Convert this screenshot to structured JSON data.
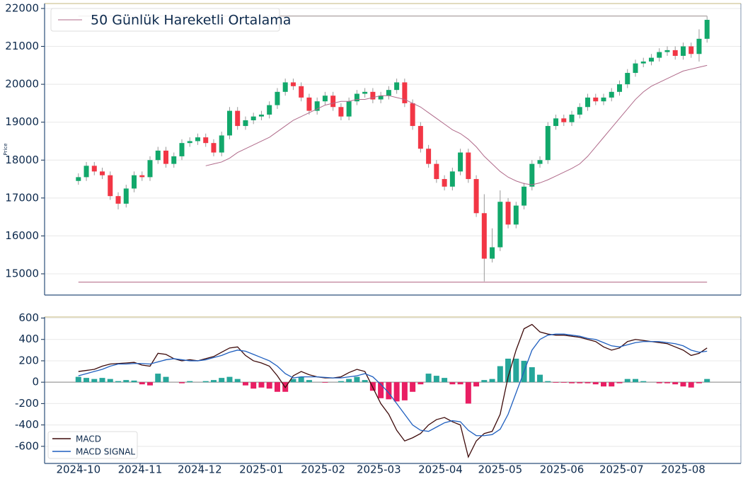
{
  "chart_data": [
    {
      "type": "candlestick",
      "ylabel": "Price",
      "legend": "50 Günlük Hareketli Ortalama",
      "up_color": "#12a86b",
      "down_color": "#f23645",
      "ma_color": "#b06a8a",
      "ylim": [
        14440,
        22130
      ],
      "yticks": [
        15000,
        16000,
        17000,
        18000,
        19000,
        20000,
        21000,
        22000
      ],
      "grid": true,
      "reference_lines": [
        {
          "value": 21800,
          "color": "#b8aeae"
        },
        {
          "value": 14780,
          "color": "#c994a8"
        }
      ],
      "x": [
        "2024-10-01",
        "2024-10-05",
        "2024-10-09",
        "2024-10-13",
        "2024-10-17",
        "2024-10-21",
        "2024-10-25",
        "2024-10-29",
        "2024-11-02",
        "2024-11-06",
        "2024-11-10",
        "2024-11-14",
        "2024-11-18",
        "2024-11-22",
        "2024-11-26",
        "2024-11-30",
        "2024-12-04",
        "2024-12-08",
        "2024-12-12",
        "2024-12-16",
        "2024-12-20",
        "2024-12-24",
        "2024-12-28",
        "2025-01-01",
        "2025-01-05",
        "2025-01-09",
        "2025-01-13",
        "2025-01-17",
        "2025-01-21",
        "2025-01-25",
        "2025-01-29",
        "2025-02-02",
        "2025-02-06",
        "2025-02-10",
        "2025-02-14",
        "2025-02-18",
        "2025-02-22",
        "2025-02-26",
        "2025-03-02",
        "2025-03-06",
        "2025-03-10",
        "2025-03-14",
        "2025-03-18",
        "2025-03-22",
        "2025-03-26",
        "2025-03-30",
        "2025-04-03",
        "2025-04-07",
        "2025-04-11",
        "2025-04-15",
        "2025-04-19",
        "2025-04-23",
        "2025-04-27",
        "2025-05-01",
        "2025-05-05",
        "2025-05-09",
        "2025-05-13",
        "2025-05-17",
        "2025-05-21",
        "2025-05-25",
        "2025-05-29",
        "2025-06-02",
        "2025-06-06",
        "2025-06-10",
        "2025-06-14",
        "2025-06-18",
        "2025-06-22",
        "2025-06-26",
        "2025-06-30",
        "2025-07-04",
        "2025-07-08",
        "2025-07-12",
        "2025-07-16",
        "2025-07-20",
        "2025-07-24",
        "2025-07-28",
        "2025-08-01",
        "2025-08-05",
        "2025-08-09",
        "2025-08-13"
      ],
      "open": [
        17450,
        17550,
        17850,
        17700,
        17600,
        17050,
        16850,
        17250,
        17600,
        17550,
        18000,
        18250,
        17900,
        18100,
        18450,
        18500,
        18600,
        18450,
        18200,
        18650,
        19300,
        18900,
        19050,
        19150,
        19200,
        19450,
        19800,
        20050,
        19950,
        19650,
        19300,
        19550,
        19700,
        19400,
        19150,
        19550,
        19750,
        19800,
        19600,
        19700,
        19850,
        20050,
        19500,
        18900,
        18300,
        17900,
        17500,
        17300,
        17700,
        18200,
        17500,
        16600,
        15400,
        15700,
        16900,
        16300,
        16800,
        17300,
        17900,
        18000,
        18900,
        19100,
        19000,
        19200,
        19400,
        19650,
        19550,
        19650,
        19800,
        20000,
        20300,
        20550,
        20600,
        20700,
        20850,
        20900,
        20750,
        21000,
        20800,
        21200
      ],
      "high": [
        17650,
        17950,
        17950,
        17800,
        17700,
        17150,
        17350,
        17700,
        17700,
        18100,
        18350,
        18350,
        18200,
        18550,
        18600,
        18700,
        18700,
        18550,
        18750,
        19400,
        19400,
        19150,
        19250,
        19300,
        19550,
        19900,
        20150,
        20150,
        20050,
        19750,
        19650,
        19800,
        19800,
        19500,
        19650,
        19850,
        19900,
        19900,
        19800,
        19950,
        20150,
        20150,
        19600,
        19000,
        18400,
        18000,
        17600,
        17800,
        18300,
        18300,
        17600,
        17100,
        16200,
        17200,
        17000,
        16900,
        17400,
        18000,
        18100,
        19000,
        19200,
        19200,
        19300,
        19500,
        19750,
        19750,
        19750,
        19900,
        20100,
        20400,
        20650,
        20700,
        20800,
        20950,
        21000,
        21000,
        21100,
        21100,
        21450,
        21800
      ],
      "low": [
        17350,
        17450,
        17600,
        17500,
        16950,
        16700,
        16750,
        17150,
        17450,
        17450,
        17900,
        17800,
        17800,
        18000,
        18350,
        18400,
        18350,
        18100,
        18100,
        18550,
        18800,
        18800,
        18950,
        19050,
        19100,
        19350,
        19700,
        19850,
        19550,
        19200,
        19200,
        19450,
        19300,
        19050,
        19050,
        19450,
        19650,
        19500,
        19500,
        19600,
        19750,
        19400,
        18800,
        18200,
        17800,
        17400,
        17200,
        17200,
        17600,
        17400,
        16500,
        14800,
        15300,
        15600,
        16200,
        16200,
        16700,
        17200,
        17800,
        17900,
        18800,
        18900,
        18900,
        19100,
        19300,
        19450,
        19450,
        19550,
        19700,
        19900,
        20200,
        20450,
        20500,
        20600,
        20750,
        20650,
        20650,
        20700,
        20600,
        21100
      ],
      "close": [
        17550,
        17850,
        17700,
        17600,
        17050,
        16850,
        17250,
        17600,
        17550,
        18000,
        18250,
        17900,
        18100,
        18450,
        18500,
        18600,
        18450,
        18200,
        18650,
        19300,
        18900,
        19050,
        19150,
        19200,
        19450,
        19800,
        20050,
        19950,
        19650,
        19300,
        19550,
        19700,
        19400,
        19150,
        19550,
        19750,
        19800,
        19600,
        19700,
        19850,
        20050,
        19500,
        18900,
        18300,
        17900,
        17500,
        17300,
        17700,
        18200,
        17500,
        16600,
        15400,
        15700,
        16900,
        16300,
        16800,
        17300,
        17900,
        18000,
        18900,
        19100,
        19000,
        19200,
        19400,
        19650,
        19550,
        19650,
        19800,
        20000,
        20300,
        20550,
        20600,
        20700,
        20850,
        20900,
        20750,
        21000,
        20800,
        21200,
        21700
      ],
      "ma50": [
        null,
        null,
        null,
        null,
        null,
        null,
        null,
        null,
        null,
        null,
        null,
        null,
        null,
        null,
        null,
        null,
        17850,
        17900,
        17950,
        18050,
        18200,
        18300,
        18400,
        18500,
        18600,
        18750,
        18900,
        19050,
        19150,
        19250,
        19350,
        19450,
        19500,
        19550,
        19550,
        19600,
        19600,
        19650,
        19700,
        19700,
        19650,
        19600,
        19500,
        19400,
        19250,
        19100,
        18950,
        18800,
        18700,
        18550,
        18350,
        18100,
        17900,
        17700,
        17550,
        17450,
        17380,
        17350,
        17400,
        17480,
        17580,
        17680,
        17780,
        17900,
        18100,
        18350,
        18600,
        18850,
        19100,
        19350,
        19600,
        19800,
        19950,
        20050,
        20150,
        20250,
        20350,
        20400,
        20450,
        20500
      ]
    },
    {
      "type": "macd",
      "ylim": [
        -760,
        610
      ],
      "yticks": [
        -600,
        -400,
        -200,
        0,
        200,
        400,
        600
      ],
      "grid": true,
      "xlim": [
        "2024-09-14",
        "2025-08-30"
      ],
      "xticks": [
        "2024-10",
        "2024-11",
        "2024-12",
        "2025-01",
        "2025-02",
        "2025-03",
        "2025-04",
        "2025-05",
        "2025-06",
        "2025-07",
        "2025-08"
      ],
      "hist_up_color": "#26a69a",
      "hist_down_color": "#e91e63",
      "series": [
        {
          "name": "MACD",
          "color": "#3d0a0a",
          "values": [
            100,
            110,
            120,
            150,
            170,
            175,
            180,
            185,
            160,
            150,
            270,
            260,
            220,
            200,
            210,
            200,
            220,
            240,
            280,
            320,
            330,
            250,
            200,
            180,
            150,
            60,
            -50,
            60,
            100,
            70,
            50,
            40,
            40,
            50,
            90,
            120,
            100,
            -50,
            -200,
            -300,
            -450,
            -550,
            -520,
            -480,
            -400,
            -350,
            -330,
            -370,
            -400,
            -700,
            -550,
            -480,
            -460,
            -300,
            50,
            300,
            500,
            540,
            470,
            450,
            440,
            440,
            430,
            420,
            400,
            380,
            330,
            300,
            320,
            380,
            400,
            390,
            380,
            370,
            360,
            330,
            300,
            250,
            270,
            320
          ]
        },
        {
          "name": "MACD SIGNAL",
          "color": "#1f5fbf",
          "values": [
            60,
            80,
            100,
            120,
            150,
            170,
            170,
            175,
            175,
            170,
            190,
            210,
            220,
            210,
            200,
            200,
            210,
            230,
            250,
            280,
            300,
            290,
            260,
            230,
            200,
            150,
            80,
            40,
            50,
            50,
            50,
            45,
            40,
            40,
            50,
            60,
            80,
            50,
            -20,
            -100,
            -200,
            -300,
            -400,
            -450,
            -460,
            -420,
            -380,
            -360,
            -370,
            -450,
            -500,
            -500,
            -490,
            -440,
            -300,
            -100,
            100,
            300,
            400,
            440,
            450,
            450,
            440,
            430,
            410,
            400,
            370,
            340,
            330,
            350,
            370,
            380,
            380,
            380,
            370,
            360,
            340,
            300,
            280,
            290
          ]
        }
      ],
      "histogram": [
        50,
        40,
        30,
        40,
        30,
        10,
        20,
        15,
        -20,
        -30,
        80,
        50,
        0,
        -10,
        10,
        0,
        10,
        20,
        40,
        50,
        30,
        -30,
        -60,
        -50,
        -60,
        -90,
        -90,
        30,
        50,
        20,
        0,
        -5,
        0,
        10,
        30,
        50,
        20,
        -80,
        -150,
        -160,
        -180,
        -170,
        -90,
        -20,
        80,
        60,
        40,
        -20,
        -20,
        -200,
        -40,
        20,
        30,
        150,
        220,
        220,
        200,
        140,
        70,
        10,
        -5,
        -5,
        -10,
        -10,
        -10,
        -20,
        -40,
        -40,
        -10,
        30,
        30,
        10,
        0,
        -10,
        -10,
        -20,
        -40,
        -50,
        -10,
        30
      ]
    }
  ]
}
